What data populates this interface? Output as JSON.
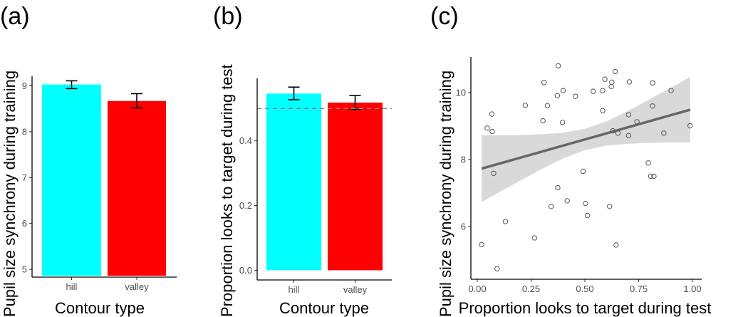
{
  "chart_data": [
    {
      "panel": "(a)",
      "type": "bar",
      "categories": [
        "hill",
        "valley"
      ],
      "values": [
        9.03,
        8.67
      ],
      "error_low": [
        8.94,
        8.52
      ],
      "error_high": [
        9.11,
        8.83
      ],
      "colors": [
        "#00FFFF",
        "#FF0000"
      ],
      "xlabel": "Contour type",
      "ylabel": "Pupil size synchrony during training",
      "yticks": [
        5,
        6,
        7,
        8,
        9
      ],
      "ylim": [
        4.83,
        9.21
      ]
    },
    {
      "panel": "(b)",
      "type": "bar",
      "categories": [
        "hill",
        "valley"
      ],
      "values": [
        0.546,
        0.518
      ],
      "error_low": [
        0.527,
        0.497
      ],
      "error_high": [
        0.566,
        0.54
      ],
      "colors": [
        "#00FFFF",
        "#FF0000"
      ],
      "reference_line": 0.5,
      "xlabel": "Contour type",
      "ylabel": "Proportion looks to target during test",
      "yticks": [
        "0.0",
        "0.2",
        "0.4"
      ],
      "ylim": [
        -0.03,
        0.593
      ]
    },
    {
      "panel": "(c)",
      "type": "scatter",
      "xlabel": "Proportion looks to target during test",
      "ylabel": "Pupil size synchrony during training",
      "xticks": [
        "0.00",
        "0.25",
        "0.50",
        "0.75",
        "1.00"
      ],
      "yticks": [
        "6",
        "8",
        "10"
      ],
      "xlim": [
        -0.03,
        1.02
      ],
      "ylim": [
        4.55,
        11.1
      ],
      "points": [
        [
          0.02,
          5.46
        ],
        [
          0.046,
          8.94
        ],
        [
          0.068,
          9.36
        ],
        [
          0.069,
          8.84
        ],
        [
          0.076,
          7.59
        ],
        [
          0.092,
          4.74
        ],
        [
          0.131,
          6.15
        ],
        [
          0.223,
          9.62
        ],
        [
          0.266,
          5.66
        ],
        [
          0.305,
          9.16
        ],
        [
          0.31,
          10.3
        ],
        [
          0.326,
          9.61
        ],
        [
          0.343,
          6.6
        ],
        [
          0.372,
          9.91
        ],
        [
          0.374,
          7.16
        ],
        [
          0.376,
          10.8
        ],
        [
          0.396,
          9.11
        ],
        [
          0.399,
          10.06
        ],
        [
          0.418,
          6.77
        ],
        [
          0.456,
          9.89
        ],
        [
          0.492,
          7.65
        ],
        [
          0.503,
          6.69
        ],
        [
          0.512,
          6.33
        ],
        [
          0.539,
          10.04
        ],
        [
          0.583,
          10.06
        ],
        [
          0.583,
          9.46
        ],
        [
          0.593,
          10.4
        ],
        [
          0.615,
          6.6
        ],
        [
          0.623,
          10.18
        ],
        [
          0.625,
          10.31
        ],
        [
          0.63,
          8.86
        ],
        [
          0.641,
          10.63
        ],
        [
          0.645,
          5.45
        ],
        [
          0.654,
          8.79
        ],
        [
          0.703,
          9.34
        ],
        [
          0.703,
          8.72
        ],
        [
          0.707,
          10.32
        ],
        [
          0.742,
          9.13
        ],
        [
          0.795,
          7.9
        ],
        [
          0.806,
          7.5
        ],
        [
          0.814,
          9.6
        ],
        [
          0.815,
          10.29
        ],
        [
          0.821,
          7.5
        ],
        [
          0.867,
          8.79
        ],
        [
          0.901,
          10.06
        ],
        [
          0.989,
          9.01
        ]
      ],
      "fit_line": {
        "x": [
          0.02,
          0.99
        ],
        "y": [
          7.73,
          9.49
        ]
      },
      "confidence_band": {
        "x": [
          0.02,
          0.1,
          0.2,
          0.3,
          0.4,
          0.5,
          0.6,
          0.7,
          0.8,
          0.9,
          0.99
        ],
        "lower": [
          6.73,
          7.02,
          7.37,
          7.72,
          8.04,
          8.28,
          8.42,
          8.47,
          8.5,
          8.51,
          8.51
        ],
        "upper": [
          8.73,
          8.73,
          8.73,
          8.76,
          8.8,
          8.92,
          9.14,
          9.45,
          9.8,
          10.15,
          10.47
        ]
      }
    }
  ]
}
